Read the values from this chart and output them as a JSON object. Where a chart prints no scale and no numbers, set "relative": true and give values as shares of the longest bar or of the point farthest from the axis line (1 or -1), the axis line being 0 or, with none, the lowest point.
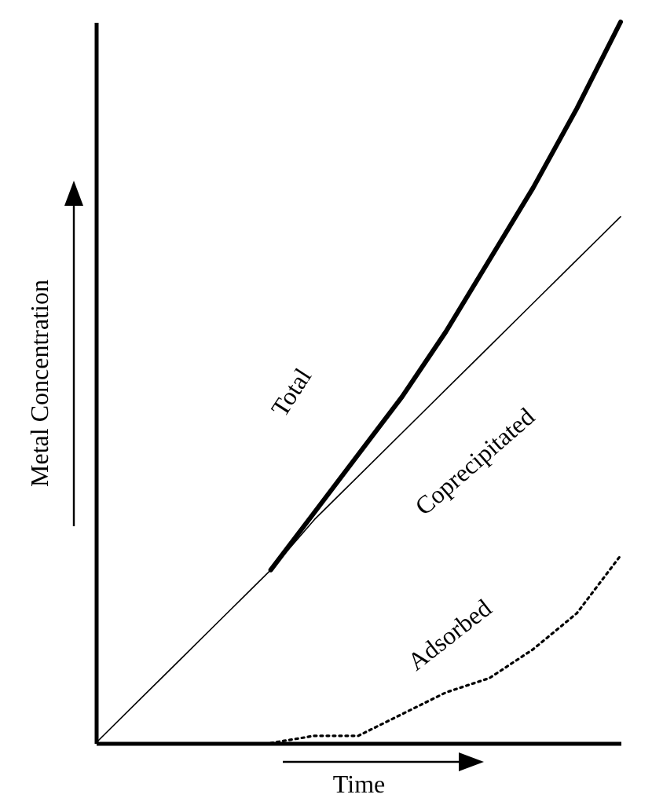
{
  "chart_data": {
    "type": "line",
    "relative": true,
    "xlabel": "Time",
    "ylabel": "Metal Concentration",
    "categories": [
      null,
      null,
      null,
      null,
      null,
      null,
      null,
      null,
      null,
      null,
      null,
      null,
      null
    ],
    "series": [
      {
        "name": "Total",
        "color": "#000000",
        "line_style": "solid",
        "values": [
          null,
          null,
          null,
          null,
          0.24,
          0.32,
          0.4,
          0.48,
          0.57,
          0.67,
          0.77,
          0.88,
          1.0
        ]
      },
      {
        "name": "Coprecipitated",
        "color": "#000000",
        "line_style": "solid",
        "values": [
          0,
          0.06,
          0.12,
          0.18,
          0.24,
          0.31,
          0.37,
          0.43,
          0.49,
          0.55,
          0.61,
          0.67,
          0.73
        ]
      },
      {
        "name": "Adsorbed",
        "color": "#000000",
        "line_style": "dotted",
        "values": [
          null,
          null,
          null,
          null,
          0.0,
          0.01,
          0.01,
          0.04,
          0.07,
          0.09,
          0.13,
          0.18,
          0.26
        ]
      }
    ]
  }
}
